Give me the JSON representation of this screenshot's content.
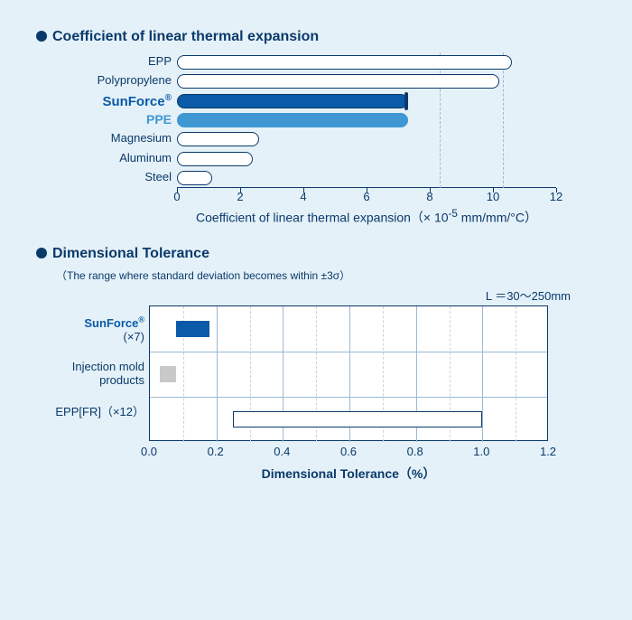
{
  "chart1": {
    "title": "Coefficient of linear thermal expansion",
    "xmax": 12,
    "xtick_step": 2,
    "xticks": [
      0,
      2,
      4,
      6,
      8,
      10,
      12
    ],
    "dashed_refs": [
      8.3,
      10.3
    ],
    "axis_label_html": "Coefficient of linear thermal expansion（× 10<sup>-5</sup> mm/mm/°C）",
    "label_color": "#0a3a6b",
    "rows": [
      {
        "label": "EPP",
        "value": 10.6,
        "fill": "#ffffff",
        "border": "#0a3a6b",
        "label_style": "normal"
      },
      {
        "label": "Polypropylene",
        "value": 10.2,
        "fill": "#ffffff",
        "border": "#0a3a6b",
        "label_style": "normal"
      },
      {
        "label_html": "SunForce<span style='font-size:10px;vertical-align:super'>®</span>",
        "value": 7.3,
        "fill": "#0a5aa8",
        "border": "#0a3a6b",
        "label_style": "bold-dark",
        "cap": true
      },
      {
        "label": "PPE",
        "value": 7.3,
        "fill": "#3f97d4",
        "border": "#3f97d4",
        "label_style": "bold-light"
      },
      {
        "label": "Magnesium",
        "value": 2.6,
        "fill": "#ffffff",
        "border": "#0a3a6b",
        "label_style": "normal"
      },
      {
        "label": "Aluminum",
        "value": 2.4,
        "fill": "#ffffff",
        "border": "#0a3a6b",
        "label_style": "normal"
      },
      {
        "label": "Steel",
        "value": 1.1,
        "fill": "#ffffff",
        "border": "#0a3a6b",
        "label_style": "normal"
      }
    ]
  },
  "chart2": {
    "title": "Dimensional Tolerance",
    "subtitle": "（The range where standard deviation becomes within ±3σ）",
    "right_note": "L ＝30〜250mm",
    "xmax": 1.2,
    "xtick_major": [
      0.0,
      0.2,
      0.4,
      0.6,
      0.8,
      1.0,
      1.2
    ],
    "xtick_minor": [
      0.1,
      0.3,
      0.5,
      0.7,
      0.9,
      1.1
    ],
    "axis_label": "Dimensional Tolerance（%）",
    "rows": [
      {
        "label_html": "<span style='color:#0a5aa8;font-weight:bold'>SunForce<span style='font-size:9px;vertical-align:super'>®</span></span><br><span style='color:#0a3a6b'>(×7)</span>",
        "start": 0.08,
        "end": 0.18,
        "fill": "#0a5aa8",
        "border": "#0a5aa8"
      },
      {
        "label_html": "<span style='color:#0a3a6b'>Injection mold<br>products</span>",
        "start": 0.03,
        "end": 0.08,
        "fill": "#c9c9c9",
        "border": "#c9c9c9"
      },
      {
        "label_html": "<span style='color:#0a3a6b'>EPP[FR]（×12）</span>",
        "start": 0.25,
        "end": 1.0,
        "fill": "#ffffff",
        "border": "#0a3a6b"
      }
    ]
  }
}
